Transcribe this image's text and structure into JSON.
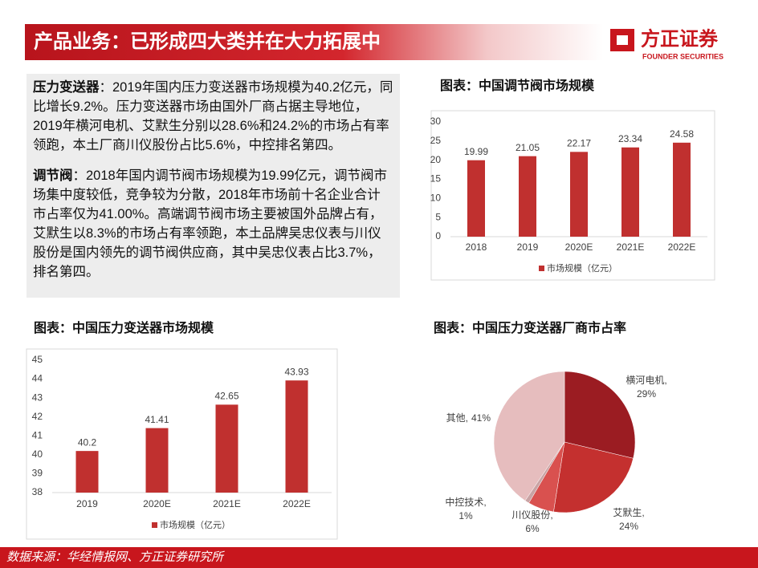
{
  "header": {
    "title": "产品业务：已形成四大类并在大力拓展中",
    "logo_name": "方正证券",
    "logo_en": "FOUNDER SECURITIES"
  },
  "paragraphs": [
    {
      "lead": "压力变送器",
      "body": "：2019年国内压力变送器市场规模为40.2亿元，同比增长9.2%。压力变送器市场由国外厂商占据主导地位，2019年横河电机、艾默生分别以28.6%和24.2%的市场占有率领跑，本土厂商川仪股份占比5.6%，中控排名第四。"
    },
    {
      "lead": "调节阀",
      "body": "：2018年国内调节阀市场规模为19.99亿元，调节阀市场集中度较低，竞争较为分散，2018年市场前十名企业合计市占率仅为41.00%。高端调节阀市场主要被国外品牌占有，艾默生以8.3%的市场占有率领跑，本土品牌吴忠仪表与川仪股份是国内领先的调节阀供应商，其中吴忠仪表占比3.7%，排名第四。"
    }
  ],
  "chart_data": [
    {
      "type": "bar",
      "title": "图表：中国调节阀市场规模",
      "categories": [
        "2018",
        "2019",
        "2020E",
        "2021E",
        "2022E"
      ],
      "series": [
        {
          "name": "市场规模（亿元）",
          "color": "#c0302f",
          "values": [
            19.99,
            21.05,
            22.17,
            23.34,
            24.58
          ]
        }
      ],
      "ylim": [
        0,
        30
      ],
      "yticks": [
        0,
        5,
        10,
        15,
        20,
        25,
        30
      ],
      "grid": false
    },
    {
      "type": "bar",
      "title": "图表：中国压力变送器市场规模",
      "categories": [
        "2019",
        "2020E",
        "2021E",
        "2022E"
      ],
      "series": [
        {
          "name": "市场规模（亿元）",
          "color": "#c0302f",
          "values": [
            40.2,
            41.41,
            42.65,
            43.93
          ]
        }
      ],
      "ylim": [
        38,
        45
      ],
      "yticks": [
        38,
        39,
        40,
        41,
        42,
        43,
        44,
        45
      ],
      "grid": false
    },
    {
      "type": "pie",
      "title": "图表：中国压力变送器厂商市占率",
      "categories": [
        "横河电机,",
        "艾默生,",
        "川仪股份,",
        "中控技术,",
        "其他,"
      ],
      "values": [
        29,
        24,
        6,
        1,
        41
      ],
      "value_labels": [
        "29%",
        "24%",
        "6%",
        "1%",
        "41%"
      ],
      "colors": [
        "#9b1c22",
        "#c4302f",
        "#d9514f",
        "#c9a3a4",
        "#e6bdbe"
      ]
    }
  ],
  "source": "数据来源：华经情报网、方正证券研究所"
}
